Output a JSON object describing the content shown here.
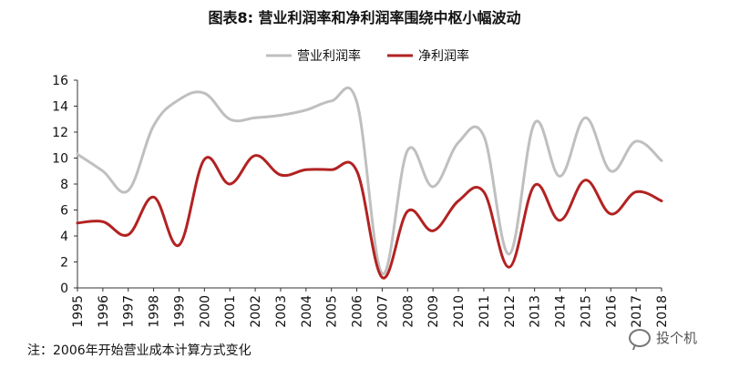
{
  "title": "图表8: 营业利润率和净利润率围绕中枢小幅波动",
  "note": "注：2006年开始营业成本计算方式变化",
  "watermark": "投个机",
  "chart_data": {
    "type": "line",
    "title": "图表8: 营业利润率和净利润率围绕中枢小幅波动",
    "x": [
      "1995",
      "1996",
      "1997",
      "1998",
      "1999",
      "2000",
      "2001",
      "2002",
      "2003",
      "2004",
      "2005",
      "2006",
      "2007",
      "2008",
      "2009",
      "2010",
      "2011",
      "2012",
      "2013",
      "2014",
      "2015",
      "2016",
      "2017",
      "2018"
    ],
    "ylim": [
      0,
      16
    ],
    "yticks": [
      0,
      2,
      4,
      6,
      8,
      10,
      12,
      14,
      16
    ],
    "grid": false,
    "legend": "top-center",
    "series": [
      {
        "name": "营业利润率",
        "color": "#bfbfbf",
        "values": [
          10.3,
          9.0,
          7.5,
          12.5,
          14.5,
          15.0,
          13.0,
          13.1,
          13.3,
          13.7,
          14.4,
          14.3,
          1.1,
          10.6,
          7.8,
          11.2,
          11.7,
          2.6,
          12.7,
          8.6,
          13.1,
          9.0,
          11.3,
          9.8
        ]
      },
      {
        "name": "净利润率",
        "color": "#b22222",
        "values": [
          5.0,
          5.1,
          4.1,
          7.0,
          3.3,
          9.9,
          8.0,
          10.2,
          8.7,
          9.1,
          9.1,
          9.0,
          0.8,
          5.9,
          4.4,
          6.7,
          7.4,
          1.6,
          7.9,
          5.2,
          8.3,
          5.7,
          7.4,
          6.7
        ]
      }
    ]
  }
}
